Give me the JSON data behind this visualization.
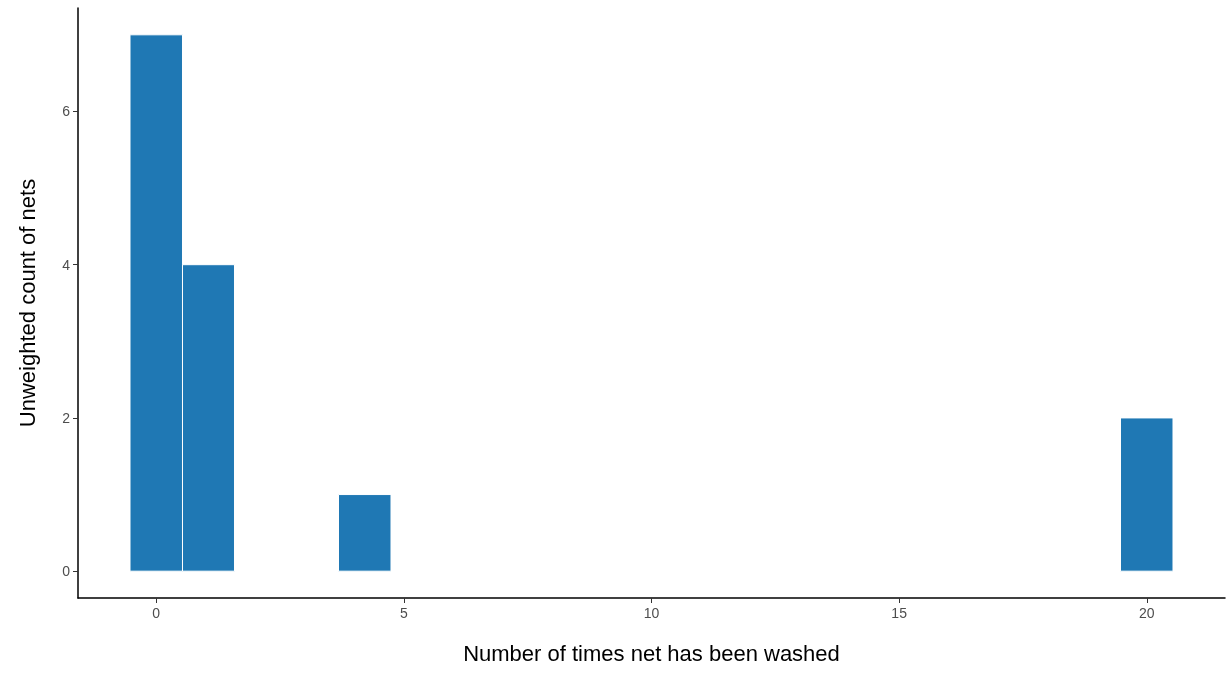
{
  "chart_data": {
    "type": "histogram",
    "xlabel": "Number of times net has been washed",
    "ylabel": "Unweighted count of nets",
    "bins": [
      -0.53,
      0.53,
      1.58,
      2.63,
      3.68,
      4.74,
      5.79,
      6.84,
      7.89,
      8.95,
      10,
      11.05,
      12.11,
      13.16,
      14.21,
      15.26,
      16.32,
      17.37,
      18.42,
      19.47,
      20.53
    ],
    "values": [
      7,
      4,
      0,
      0,
      1,
      0,
      0,
      0,
      0,
      0,
      0,
      0,
      0,
      0,
      0,
      0,
      0,
      0,
      0,
      2
    ],
    "color": "#1f78b4",
    "xlim": [
      -1.58,
      21.58
    ],
    "xticks": [
      0,
      5,
      10,
      15,
      20
    ],
    "ylim": [
      -0.35,
      7.35
    ],
    "yticks": [
      0,
      2,
      4,
      6
    ],
    "grid": false
  }
}
